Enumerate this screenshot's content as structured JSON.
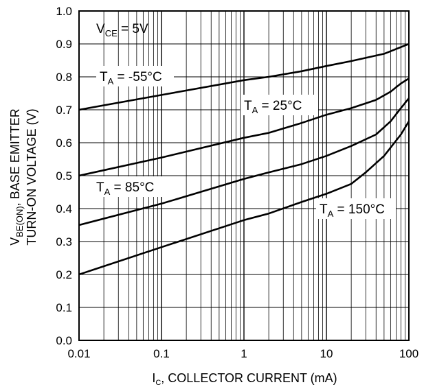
{
  "chart_data": {
    "type": "line",
    "x_scale": "log",
    "xlim": [
      0.01,
      100
    ],
    "ylim": [
      0.0,
      1.0
    ],
    "grid": true,
    "x_ticks": [
      {
        "value": 0.01,
        "label": "0.01"
      },
      {
        "value": 0.1,
        "label": "0.1"
      },
      {
        "value": 1,
        "label": "1"
      },
      {
        "value": 10,
        "label": "10"
      },
      {
        "value": 100,
        "label": "100"
      }
    ],
    "y_ticks": [
      {
        "value": 0.0,
        "label": "0.0"
      },
      {
        "value": 0.1,
        "label": "0.1"
      },
      {
        "value": 0.2,
        "label": "0.2"
      },
      {
        "value": 0.3,
        "label": "0.3"
      },
      {
        "value": 0.4,
        "label": "0.4"
      },
      {
        "value": 0.5,
        "label": "0.5"
      },
      {
        "value": 0.6,
        "label": "0.6"
      },
      {
        "value": 0.7,
        "label": "0.7"
      },
      {
        "value": 0.8,
        "label": "0.8"
      },
      {
        "value": 0.9,
        "label": "0.9"
      },
      {
        "value": 1.0,
        "label": "1.0"
      }
    ],
    "xlabel": {
      "main": "I",
      "sub": "C",
      "rest": ", COLLECTOR CURRENT (mA)"
    },
    "ylabel": {
      "line1_main": "V",
      "line1_sub": "BE(ON)",
      "line1_rest": ", BASE EMITTER",
      "line2": "TURN-ON VOLTAGE (V)"
    },
    "condition": {
      "main": "V",
      "sub": "CE",
      "rest": " = 5V"
    },
    "series": [
      {
        "name": "T_A = -55°C",
        "label": {
          "main": "T",
          "sub": "A",
          "rest": " = -55°C"
        },
        "x": [
          0.01,
          0.1,
          1,
          2,
          5,
          10,
          20,
          50,
          100
        ],
        "y": [
          0.7,
          0.745,
          0.79,
          0.8,
          0.817,
          0.833,
          0.848,
          0.87,
          0.9
        ]
      },
      {
        "name": "T_A = 25°C",
        "label": {
          "main": "T",
          "sub": "A",
          "rest": " = 25°C"
        },
        "x": [
          0.01,
          0.1,
          1,
          2,
          5,
          10,
          20,
          40,
          60,
          80,
          100
        ],
        "y": [
          0.5,
          0.555,
          0.615,
          0.63,
          0.66,
          0.685,
          0.705,
          0.73,
          0.755,
          0.78,
          0.795
        ]
      },
      {
        "name": "T_A = 85°C",
        "label": {
          "main": "T",
          "sub": "A",
          "rest": " = 85°C"
        },
        "x": [
          0.01,
          0.1,
          1,
          2,
          5,
          10,
          20,
          40,
          60,
          80,
          100
        ],
        "y": [
          0.35,
          0.415,
          0.49,
          0.51,
          0.535,
          0.56,
          0.59,
          0.625,
          0.665,
          0.705,
          0.735
        ]
      },
      {
        "name": "T_A = 150°C",
        "label": {
          "main": "T",
          "sub": "A",
          "rest": " = 150°C"
        },
        "x": [
          0.01,
          0.1,
          1,
          2,
          5,
          10,
          20,
          30,
          50,
          80,
          100
        ],
        "y": [
          0.2,
          0.283,
          0.365,
          0.385,
          0.42,
          0.445,
          0.475,
          0.51,
          0.56,
          0.625,
          0.665
        ]
      }
    ]
  }
}
